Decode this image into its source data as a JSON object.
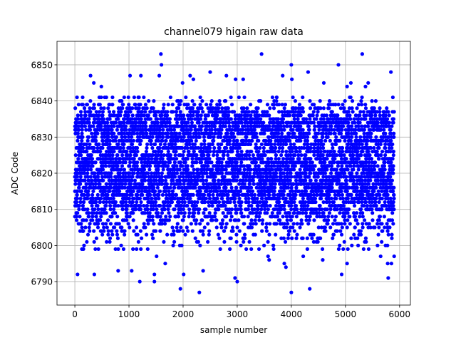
{
  "chart_data": {
    "type": "scatter",
    "title": "channel079 higain raw data",
    "xlabel": "sample number",
    "ylabel": "ADC Code",
    "xlim": [
      -330,
      6200
    ],
    "ylim": [
      6783.5,
      6856.5
    ],
    "xticks": [
      0,
      1000,
      2000,
      3000,
      4000,
      5000,
      6000
    ],
    "yticks": [
      6790,
      6800,
      6810,
      6820,
      6830,
      6840,
      6850
    ],
    "xtick_labels": [
      "0",
      "1000",
      "2000",
      "3000",
      "4000",
      "5000",
      "6000"
    ],
    "ytick_labels": [
      "6790",
      "6800",
      "6810",
      "6820",
      "6830",
      "6840",
      "6850"
    ],
    "grid": true,
    "marker_color": "#0000ff",
    "n_points": 5900,
    "distribution": {
      "bulk_range": [
        6803,
        6839
      ],
      "center": 6819,
      "common_level": 6834
    },
    "series": [
      {
        "name": "",
        "points": [
          {
            "x": 1590,
            "y": 6853
          },
          {
            "x": 3450,
            "y": 6853
          },
          {
            "x": 5310,
            "y": 6853
          },
          {
            "x": 1600,
            "y": 6850
          },
          {
            "x": 4000,
            "y": 6850
          },
          {
            "x": 4870,
            "y": 6850
          },
          {
            "x": 1560,
            "y": 6847
          },
          {
            "x": 1220,
            "y": 6847
          },
          {
            "x": 1020,
            "y": 6847
          },
          {
            "x": 290,
            "y": 6847
          },
          {
            "x": 2130,
            "y": 6847
          },
          {
            "x": 2500,
            "y": 6848
          },
          {
            "x": 2800,
            "y": 6847
          },
          {
            "x": 4310,
            "y": 6848
          },
          {
            "x": 5840,
            "y": 6848
          },
          {
            "x": 3840,
            "y": 6847
          },
          {
            "x": 2970,
            "y": 6846
          },
          {
            "x": 3110,
            "y": 6846
          },
          {
            "x": 4010,
            "y": 6846
          },
          {
            "x": 2190,
            "y": 6846
          },
          {
            "x": 350,
            "y": 6845
          },
          {
            "x": 1990,
            "y": 6845
          },
          {
            "x": 4600,
            "y": 6845
          },
          {
            "x": 5100,
            "y": 6845
          },
          {
            "x": 5420,
            "y": 6845
          },
          {
            "x": 490,
            "y": 6844
          },
          {
            "x": 5370,
            "y": 6844
          },
          {
            "x": 40,
            "y": 6841
          },
          {
            "x": 5030,
            "y": 6844
          },
          {
            "x": 50,
            "y": 6792
          },
          {
            "x": 360,
            "y": 6792
          },
          {
            "x": 2010,
            "y": 6792
          },
          {
            "x": 4930,
            "y": 6792
          },
          {
            "x": 2960,
            "y": 6791
          },
          {
            "x": 5790,
            "y": 6791
          },
          {
            "x": 3000,
            "y": 6790
          },
          {
            "x": 1200,
            "y": 6790
          },
          {
            "x": 1470,
            "y": 6790
          },
          {
            "x": 1950,
            "y": 6788
          },
          {
            "x": 4340,
            "y": 6788
          },
          {
            "x": 2300,
            "y": 6787
          },
          {
            "x": 4000,
            "y": 6787
          },
          {
            "x": 800,
            "y": 6793
          },
          {
            "x": 1050,
            "y": 6793
          },
          {
            "x": 2370,
            "y": 6793
          },
          {
            "x": 1470,
            "y": 6792
          },
          {
            "x": 3870,
            "y": 6795
          },
          {
            "x": 5030,
            "y": 6795
          },
          {
            "x": 5780,
            "y": 6795
          },
          {
            "x": 5850,
            "y": 6795
          },
          {
            "x": 1670,
            "y": 6795
          },
          {
            "x": 3900,
            "y": 6794
          },
          {
            "x": 3590,
            "y": 6796
          },
          {
            "x": 4580,
            "y": 6796
          },
          {
            "x": 5650,
            "y": 6797
          },
          {
            "x": 5900,
            "y": 6797
          },
          {
            "x": 4220,
            "y": 6797
          },
          {
            "x": 1510,
            "y": 6797
          },
          {
            "x": 3570,
            "y": 6797
          }
        ]
      }
    ]
  }
}
